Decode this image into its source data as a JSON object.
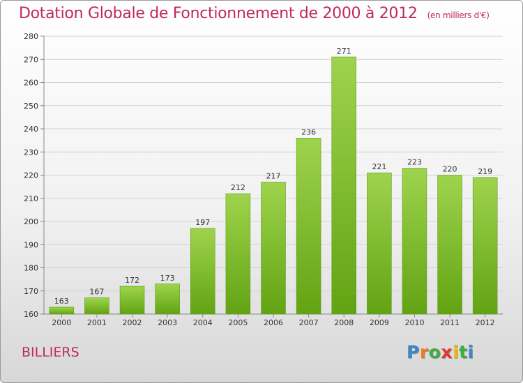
{
  "header": {
    "title": "Dotation Globale de Fonctionnement de 2000 à 2012",
    "subtitle": "(en milliers d'€)"
  },
  "commune": "BILLIERS",
  "brand": {
    "letters": [
      "P",
      "r",
      "o",
      "x",
      "i",
      "t",
      "i"
    ],
    "colors": [
      "#3c86c9",
      "#f07d1a",
      "#3cae3c",
      "#e3342f",
      "#f5b700",
      "#3cae3c",
      "#3c86c9"
    ]
  },
  "chart_data": {
    "type": "bar",
    "title": "Dotation Globale de Fonctionnement de 2000 à 2012",
    "subtitle": "(en milliers d'€)",
    "categories": [
      "2000",
      "2001",
      "2002",
      "2003",
      "2004",
      "2005",
      "2006",
      "2007",
      "2008",
      "2009",
      "2010",
      "2011",
      "2012"
    ],
    "values": [
      163,
      167,
      172,
      173,
      197,
      212,
      217,
      236,
      271,
      221,
      223,
      220,
      219
    ],
    "ylim": [
      160,
      280
    ],
    "yticks": [
      160,
      170,
      180,
      190,
      200,
      210,
      220,
      230,
      240,
      250,
      260,
      270,
      280
    ],
    "grid": true,
    "bar_color": "#7cc02c",
    "xlabel": "",
    "ylabel": ""
  }
}
